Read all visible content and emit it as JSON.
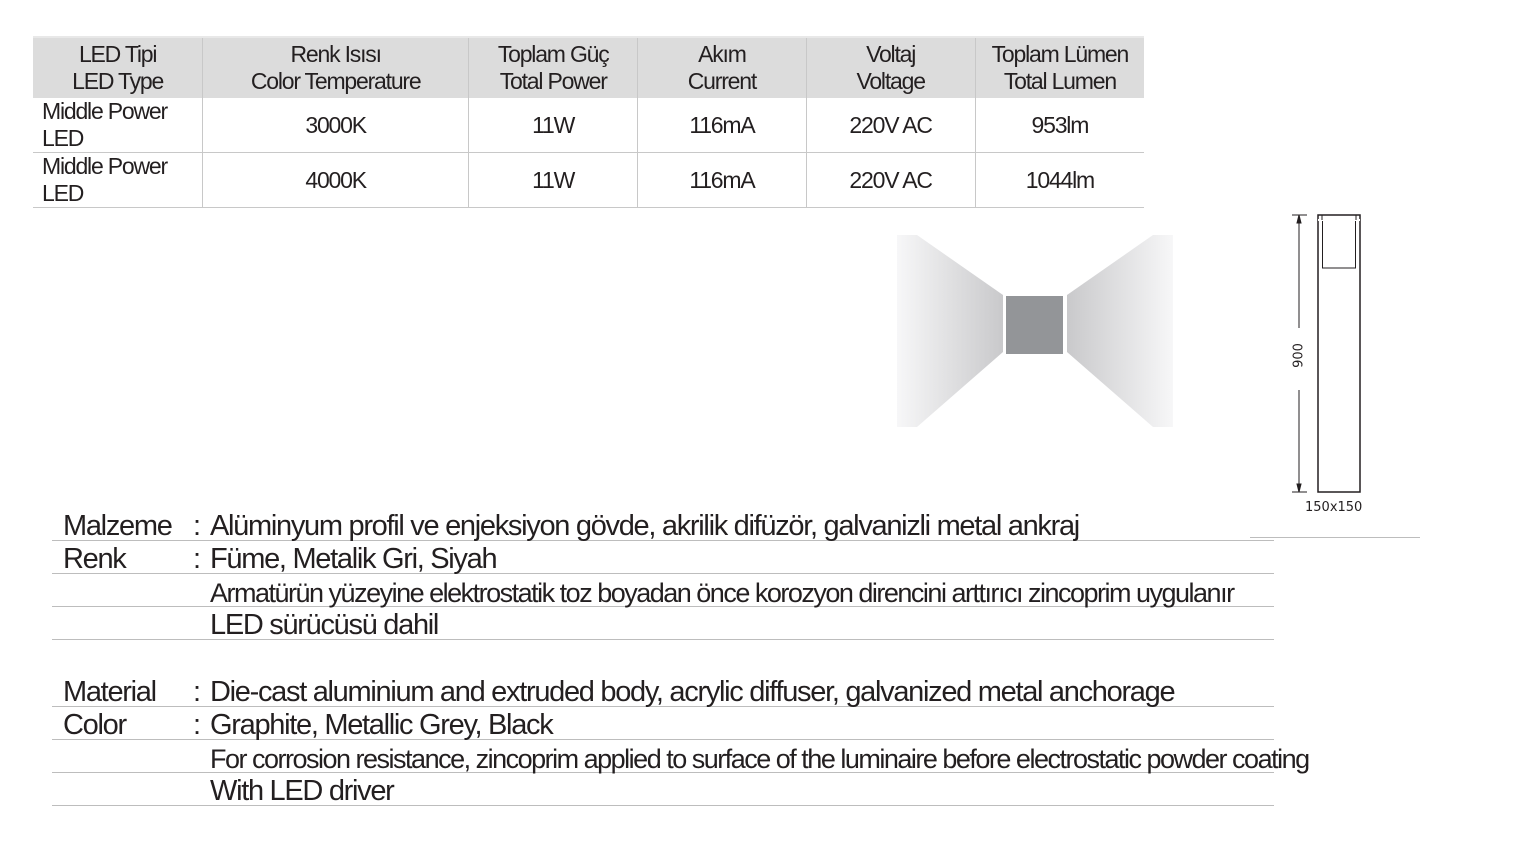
{
  "table": {
    "headers": [
      [
        "LED Tipi",
        "LED Type"
      ],
      [
        "Renk Isısı",
        "Color Temperature"
      ],
      [
        "Toplam Güç",
        "Total Power"
      ],
      [
        "Akım",
        "Current"
      ],
      [
        "Voltaj",
        "Voltage"
      ],
      [
        "Toplam Lümen",
        "Total Lumen"
      ]
    ],
    "rows": [
      [
        "Middle Power LED",
        "3000K",
        "11W",
        "116mA",
        "220V AC",
        "953lm"
      ],
      [
        "Middle Power LED",
        "4000K",
        "11W",
        "116mA",
        "220V AC",
        "1044lm"
      ]
    ]
  },
  "drawing": {
    "height_label": "900",
    "base_label": "150x150",
    "colors": {
      "fixture": "#939598",
      "beam": "#d0d0d2"
    }
  },
  "description_tr": {
    "material_label": "Malzeme",
    "material_value": "Alüminyum profil ve enjeksiyon gövde, akrilik difüzör, galvanizli metal ankraj",
    "color_label": "Renk",
    "color_value": "Füme, Metalik Gri, Siyah",
    "note1": "Armatürün yüzeyine elektrostatik toz boyadan önce korozyon direncini arttırıcı zincoprim uygulanır",
    "note2": "LED sürücüsü dahil"
  },
  "description_en": {
    "material_label": "Material",
    "material_value": "Die-cast aluminium and extruded body, acrylic diffuser, galvanized metal anchorage",
    "color_label": "Color",
    "color_value": "Graphite, Metallic Grey, Black",
    "note1": "For corrosion resistance, zincoprim applied to surface of the luminaire before electrostatic powder coating",
    "note2": "With LED driver"
  },
  "colon": ":"
}
